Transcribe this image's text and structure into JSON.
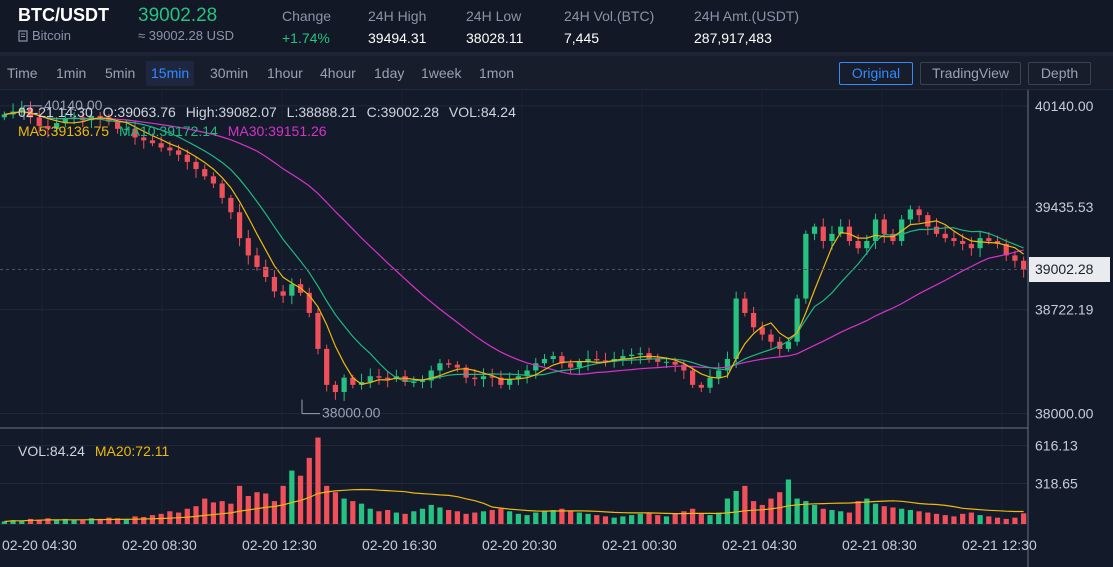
{
  "header": {
    "pair": "BTC/USDT",
    "coin_name": "Bitcoin",
    "price": "39002.28",
    "price_usd": "≈ 39002.28 USD",
    "stats": [
      {
        "label": "Change",
        "value": "+1.74%",
        "up": true
      },
      {
        "label": "24H High",
        "value": "39494.31"
      },
      {
        "label": "24H Low",
        "value": "38028.11"
      },
      {
        "label": "24H Vol.(BTC)",
        "value": "7,445"
      },
      {
        "label": "24H Amt.(USDT)",
        "value": "287,917,483"
      }
    ]
  },
  "toolbar": {
    "timeframes": [
      "Time",
      "1min",
      "5min",
      "15min",
      "30min",
      "1hour",
      "4hour",
      "1day",
      "1week",
      "1mon"
    ],
    "active_timeframe": "15min",
    "views": [
      "Original",
      "TradingView",
      "Depth"
    ],
    "active_view": "Original"
  },
  "info": {
    "time": "02-21 14:30",
    "open": "O:39063.76",
    "high": "High:39082.07",
    "low": "L:38888.21",
    "close": "C:39002.28",
    "vol": "VOL:84.24",
    "ma5": "MA5:39136.75",
    "ma10": "MA10:39172.14",
    "ma30": "MA30:39151.26",
    "vol_label": "VOL:84.24",
    "ma20": "MA20:72.11"
  },
  "colors": {
    "up": "#26c281",
    "down": "#f0505a",
    "ma5": "#f0b90b",
    "ma10": "#1fb980",
    "ma30": "#d633c8",
    "accent": "#2f8cff"
  },
  "axis": {
    "price_ticks": [
      "40140.00",
      "39435.53",
      "38722.19",
      "38000.00"
    ],
    "current_price": "39002.28",
    "volume_ticks": [
      "616.13",
      "318.65"
    ],
    "time_ticks": [
      "02-20 04:30",
      "02-20 08:30",
      "02-20 12:30",
      "02-20 16:30",
      "02-20 20:30",
      "02-21 00:30",
      "02-21 04:30",
      "02-21 08:30",
      "02-21 12:30"
    ],
    "max_marker": "40140.00",
    "min_marker": "38000.00"
  },
  "chart_data": {
    "type": "candlestick",
    "price_range": [
      37900,
      40250
    ],
    "close_series": [
      40080,
      40100,
      40120,
      40060,
      40000,
      39980,
      40020,
      40050,
      40060,
      40040,
      40070,
      40060,
      40030,
      39980,
      39980,
      39920,
      39900,
      39880,
      39850,
      39830,
      39800,
      39750,
      39700,
      39650,
      39600,
      39500,
      39400,
      39220,
      39100,
      39020,
      38950,
      38850,
      38820,
      38900,
      38840,
      38700,
      38450,
      38200,
      38150,
      38250,
      38200,
      38220,
      38260,
      38250,
      38240,
      38260,
      38220,
      38220,
      38230,
      38300,
      38350,
      38340,
      38320,
      38250,
      38240,
      38260,
      38250,
      38200,
      38240,
      38260,
      38300,
      38350,
      38380,
      38400,
      38350,
      38320,
      38360,
      38380,
      38370,
      38360,
      38380,
      38400,
      38410,
      38420,
      38380,
      38360,
      38360,
      38340,
      38300,
      38200,
      38180,
      38250,
      38300,
      38380,
      38800,
      38700,
      38600,
      38550,
      38500,
      38450,
      38500,
      38800,
      39250,
      39300,
      39200,
      39250,
      39300,
      39200,
      39150,
      39200,
      39350,
      39250,
      39200,
      39350,
      39420,
      39380,
      39300,
      39250,
      39220,
      39200,
      39180,
      39150,
      39220,
      39200,
      39180,
      39100,
      39063,
      39002
    ],
    "volume_range": [
      0,
      700
    ],
    "volume_series": [
      20,
      30,
      25,
      40,
      35,
      45,
      30,
      40,
      35,
      30,
      45,
      40,
      50,
      45,
      40,
      60,
      55,
      70,
      80,
      100,
      90,
      120,
      140,
      200,
      170,
      180,
      160,
      300,
      220,
      250,
      240,
      180,
      300,
      420,
      380,
      520,
      680,
      300,
      250,
      200,
      180,
      160,
      120,
      100,
      110,
      90,
      80,
      100,
      120,
      150,
      130,
      110,
      100,
      80,
      90,
      100,
      110,
      120,
      100,
      80,
      70,
      90,
      100,
      110,
      120,
      100,
      90,
      80,
      70,
      60,
      50,
      60,
      70,
      80,
      90,
      70,
      60,
      80,
      100,
      120,
      80,
      70,
      90,
      200,
      260,
      300,
      180,
      150,
      200,
      250,
      350,
      200,
      180,
      150,
      120,
      110,
      100,
      90,
      180,
      200,
      160,
      140,
      130,
      120,
      110,
      100,
      90,
      80,
      70,
      60,
      80,
      90,
      70,
      60,
      50,
      40,
      50,
      84
    ]
  }
}
